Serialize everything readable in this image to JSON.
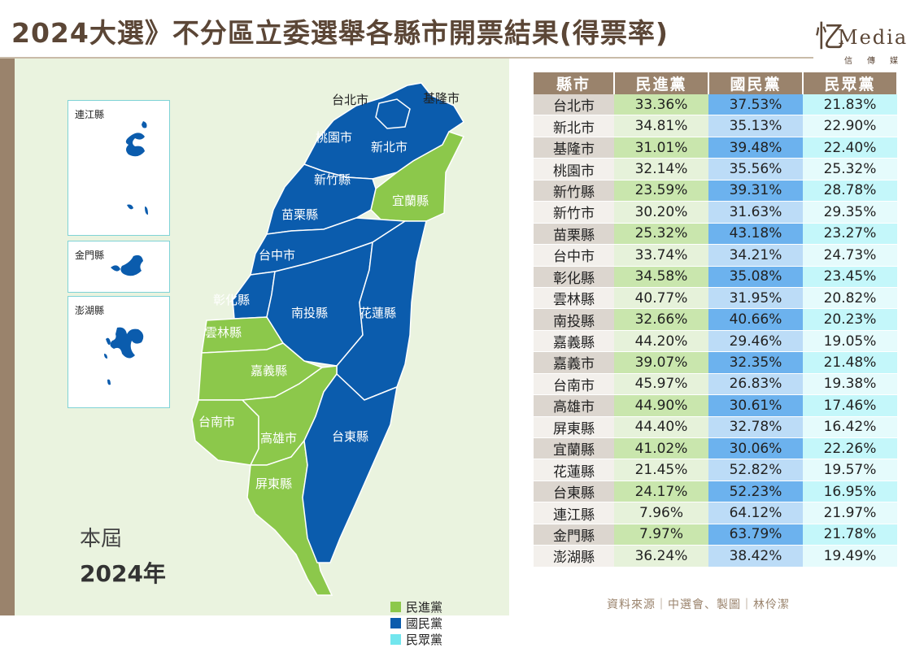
{
  "title": "2024大選》不分區立委選舉各縣市開票結果(得票率)",
  "logo": {
    "mark": "忆",
    "word": "Media",
    "sub": "信傳媒"
  },
  "colors": {
    "dpp": "#8cc84b",
    "kmt": "#0b5cad",
    "tpp": "#72e6ee",
    "brown": "#9a836c"
  },
  "map": {
    "labels": {
      "taipei": "台北市",
      "keelung": "基隆市",
      "taoyuan": "桃園市",
      "new_taipei": "新北市",
      "hsinchu_county": "新竹縣",
      "yilan": "宜蘭縣",
      "miaoli": "苗栗縣",
      "taichung": "台中市",
      "changhua": "彰化縣",
      "nantou": "南投縣",
      "hualien": "花蓮縣",
      "yunlin": "雲林縣",
      "chiayi": "嘉義縣",
      "tainan": "台南市",
      "kaohsiung": "高雄市",
      "taitung": "台東縣",
      "pingtung": "屏東縣"
    },
    "insets": {
      "lienchiang": "連江縣",
      "kinmen": "金門縣",
      "penghu": "澎湖縣"
    }
  },
  "era": {
    "label": "本屆",
    "year": "2024年"
  },
  "legend": [
    {
      "label": "民進黨",
      "color": "#8cc84b"
    },
    {
      "label": "國民黨",
      "color": "#0b5cad"
    },
    {
      "label": "民眾黨",
      "color": "#72e6ee"
    }
  ],
  "table": {
    "headers": [
      "縣市",
      "民進黨",
      "國民黨",
      "民眾黨"
    ]
  },
  "chart_data": {
    "type": "table",
    "columns": [
      "縣市",
      "民進黨",
      "國民黨",
      "民眾黨"
    ],
    "rows": [
      [
        "台北市",
        "33.36%",
        "37.53%",
        "21.83%"
      ],
      [
        "新北市",
        "34.81%",
        "35.13%",
        "22.90%"
      ],
      [
        "基隆市",
        "31.01%",
        "39.48%",
        "22.40%"
      ],
      [
        "桃園市",
        "32.14%",
        "35.56%",
        "25.32%"
      ],
      [
        "新竹縣",
        "23.59%",
        "39.31%",
        "28.78%"
      ],
      [
        "新竹市",
        "30.20%",
        "31.63%",
        "29.35%"
      ],
      [
        "苗栗縣",
        "25.32%",
        "43.18%",
        "23.27%"
      ],
      [
        "台中市",
        "33.74%",
        "34.21%",
        "24.73%"
      ],
      [
        "彰化縣",
        "34.58%",
        "35.08%",
        "23.45%"
      ],
      [
        "雲林縣",
        "40.77%",
        "31.95%",
        "20.82%"
      ],
      [
        "南投縣",
        "32.66%",
        "40.66%",
        "20.23%"
      ],
      [
        "嘉義縣",
        "44.20%",
        "29.46%",
        "19.05%"
      ],
      [
        "嘉義市",
        "39.07%",
        "32.35%",
        "21.48%"
      ],
      [
        "台南市",
        "45.97%",
        "26.83%",
        "19.38%"
      ],
      [
        "高雄市",
        "44.90%",
        "30.61%",
        "17.46%"
      ],
      [
        "屏東縣",
        "44.40%",
        "32.78%",
        "16.42%"
      ],
      [
        "宜蘭縣",
        "41.02%",
        "30.06%",
        "22.26%"
      ],
      [
        "花蓮縣",
        "21.45%",
        "52.82%",
        "19.57%"
      ],
      [
        "台東縣",
        "24.17%",
        "52.23%",
        "16.95%"
      ],
      [
        "連江縣",
        "7.96%",
        "64.12%",
        "21.97%"
      ],
      [
        "金門縣",
        "7.97%",
        "63.79%",
        "21.78%"
      ],
      [
        "澎湖縣",
        "36.24%",
        "38.42%",
        "19.49%"
      ]
    ]
  },
  "source": "資料來源｜中選會、製圖｜林伶潔"
}
